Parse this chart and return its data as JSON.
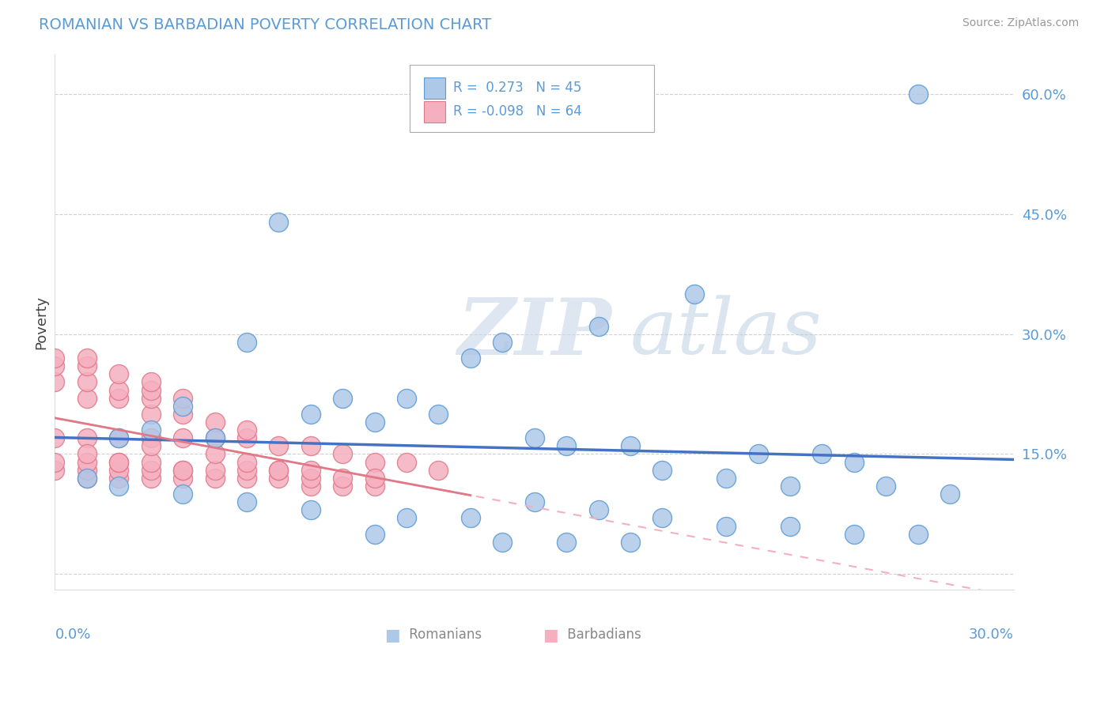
{
  "title": "ROMANIAN VS BARBADIAN POVERTY CORRELATION CHART",
  "source": "Source: ZipAtlas.com",
  "ylabel": "Poverty",
  "xlim": [
    0.0,
    0.3
  ],
  "ylim": [
    -0.02,
    0.65
  ],
  "yticks": [
    0.0,
    0.15,
    0.3,
    0.45,
    0.6
  ],
  "ytick_labels": [
    "",
    "15.0%",
    "30.0%",
    "45.0%",
    "60.0%"
  ],
  "xtick_label_left": "0.0%",
  "xtick_label_right": "30.0%",
  "romanian_color": "#aec8e8",
  "romanian_edge_color": "#5b9bd5",
  "barbadian_color": "#f5b0c0",
  "barbadian_edge_color": "#e07888",
  "romanian_line_color": "#4472c4",
  "barbadian_solid_color": "#e07888",
  "barbadian_dash_color": "#f5b0c0",
  "title_color": "#5b9bd5",
  "axis_color": "#5b9bd5",
  "legend_text_color": "#5b9bd5",
  "grid_color": "#cccccc",
  "bg_color": "#ffffff",
  "watermark_zip": "ZIP",
  "watermark_atlas": "atlas",
  "source_color": "#999999",
  "bottom_legend_color": "#888888",
  "romanian_n": 45,
  "barbadian_n": 64,
  "romanian_r": 0.273,
  "barbadian_r": -0.098,
  "romanian_x": [
    0.27,
    0.07,
    0.2,
    0.17,
    0.14,
    0.13,
    0.11,
    0.08,
    0.06,
    0.04,
    0.03,
    0.02,
    0.01,
    0.05,
    0.09,
    0.12,
    0.15,
    0.18,
    0.22,
    0.25,
    0.1,
    0.16,
    0.19,
    0.21,
    0.23,
    0.26,
    0.28,
    0.24,
    0.02,
    0.04,
    0.06,
    0.08,
    0.11,
    0.13,
    0.15,
    0.17,
    0.19,
    0.21,
    0.23,
    0.25,
    0.27,
    0.1,
    0.14,
    0.18,
    0.16
  ],
  "romanian_y": [
    0.6,
    0.44,
    0.35,
    0.31,
    0.29,
    0.27,
    0.22,
    0.2,
    0.29,
    0.21,
    0.18,
    0.17,
    0.12,
    0.17,
    0.22,
    0.2,
    0.17,
    0.16,
    0.15,
    0.14,
    0.19,
    0.16,
    0.13,
    0.12,
    0.11,
    0.11,
    0.1,
    0.15,
    0.11,
    0.1,
    0.09,
    0.08,
    0.07,
    0.07,
    0.09,
    0.08,
    0.07,
    0.06,
    0.06,
    0.05,
    0.05,
    0.05,
    0.04,
    0.04,
    0.04
  ],
  "barbadian_x": [
    0.0,
    0.0,
    0.0,
    0.0,
    0.0,
    0.0,
    0.01,
    0.01,
    0.01,
    0.01,
    0.01,
    0.01,
    0.01,
    0.01,
    0.02,
    0.02,
    0.02,
    0.02,
    0.02,
    0.02,
    0.02,
    0.03,
    0.03,
    0.03,
    0.03,
    0.03,
    0.03,
    0.03,
    0.04,
    0.04,
    0.04,
    0.04,
    0.04,
    0.05,
    0.05,
    0.05,
    0.05,
    0.06,
    0.06,
    0.06,
    0.06,
    0.07,
    0.07,
    0.07,
    0.08,
    0.08,
    0.08,
    0.09,
    0.09,
    0.1,
    0.1,
    0.11,
    0.12,
    0.03,
    0.04,
    0.05,
    0.06,
    0.07,
    0.08,
    0.09,
    0.01,
    0.02,
    0.03,
    0.1
  ],
  "barbadian_y": [
    0.13,
    0.14,
    0.17,
    0.24,
    0.26,
    0.27,
    0.12,
    0.13,
    0.14,
    0.17,
    0.22,
    0.24,
    0.26,
    0.27,
    0.12,
    0.13,
    0.14,
    0.17,
    0.22,
    0.23,
    0.25,
    0.12,
    0.13,
    0.17,
    0.2,
    0.22,
    0.23,
    0.24,
    0.12,
    0.13,
    0.17,
    0.2,
    0.22,
    0.12,
    0.13,
    0.17,
    0.19,
    0.12,
    0.13,
    0.17,
    0.18,
    0.12,
    0.13,
    0.16,
    0.11,
    0.12,
    0.16,
    0.11,
    0.15,
    0.11,
    0.14,
    0.14,
    0.13,
    0.14,
    0.13,
    0.15,
    0.14,
    0.13,
    0.13,
    0.12,
    0.15,
    0.14,
    0.16,
    0.12
  ]
}
